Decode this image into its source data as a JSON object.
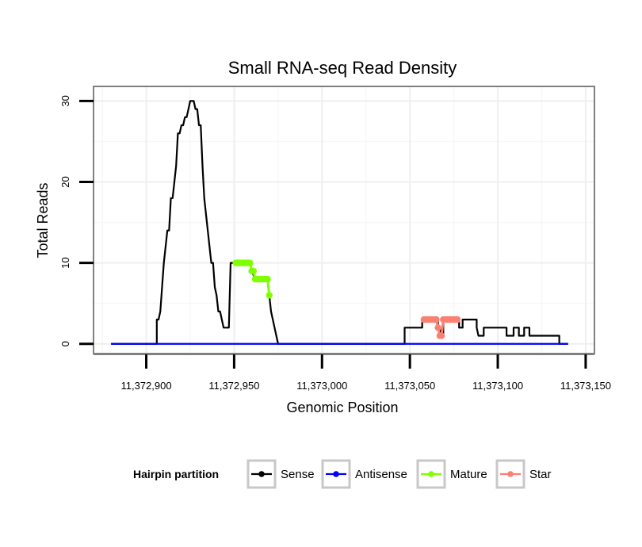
{
  "chart_data": {
    "type": "line",
    "title": "Small RNA-seq Read Density",
    "xlabel": "Genomic Position",
    "ylabel": "Total Reads",
    "xlim": [
      11372870,
      11373155
    ],
    "ylim": [
      -1.2,
      31.8
    ],
    "x_ticks": [
      11372900,
      11372950,
      11373000,
      11373050,
      11373100,
      11373150
    ],
    "x_tick_labels": [
      "11,372,900",
      "11,372,950",
      "11,373,000",
      "11,373,050",
      "11,373,100",
      "11,373,150"
    ],
    "y_ticks": [
      0,
      10,
      20,
      30
    ],
    "y_tick_labels": [
      "0",
      "10",
      "20",
      "30"
    ],
    "grid": true,
    "legend": {
      "title": "Hairpin partition",
      "position": "bottom",
      "entries": [
        "Sense",
        "Antisense",
        "Mature",
        "Star"
      ]
    },
    "series": [
      {
        "name": "Sense",
        "style": "line",
        "color": "#000000",
        "points": [
          [
            11372880,
            0
          ],
          [
            11372906,
            0
          ],
          [
            11372906,
            3
          ],
          [
            11372907,
            3
          ],
          [
            11372908,
            4
          ],
          [
            11372909,
            7
          ],
          [
            11372910,
            10
          ],
          [
            11372911,
            12
          ],
          [
            11372912,
            14
          ],
          [
            11372913,
            14
          ],
          [
            11372914,
            18
          ],
          [
            11372915,
            18
          ],
          [
            11372916,
            20
          ],
          [
            11372917,
            22
          ],
          [
            11372918,
            26
          ],
          [
            11372919,
            26
          ],
          [
            11372920,
            27
          ],
          [
            11372921,
            27
          ],
          [
            11372922,
            28
          ],
          [
            11372923,
            28
          ],
          [
            11372924,
            29
          ],
          [
            11372925,
            30
          ],
          [
            11372926,
            30
          ],
          [
            11372927,
            30
          ],
          [
            11372928,
            29
          ],
          [
            11372929,
            29
          ],
          [
            11372930,
            27
          ],
          [
            11372931,
            27
          ],
          [
            11372932,
            22
          ],
          [
            11372933,
            18
          ],
          [
            11372934,
            16
          ],
          [
            11372935,
            14
          ],
          [
            11372936,
            12
          ],
          [
            11372937,
            10
          ],
          [
            11372938,
            10
          ],
          [
            11372939,
            7
          ],
          [
            11372940,
            6
          ],
          [
            11372941,
            4
          ],
          [
            11372942,
            4
          ],
          [
            11372943,
            3
          ],
          [
            11372944,
            2
          ],
          [
            11372947,
            2
          ],
          [
            11372948,
            10
          ],
          [
            11372959,
            10
          ],
          [
            11372960,
            9
          ],
          [
            11372962,
            8
          ],
          [
            11372969,
            8
          ],
          [
            11372970,
            6
          ],
          [
            11372971,
            4
          ],
          [
            11372972,
            3
          ],
          [
            11372973,
            2
          ],
          [
            11372974,
            1
          ],
          [
            11372975,
            0
          ],
          [
            11373047,
            0
          ],
          [
            11373047,
            2
          ],
          [
            11373057,
            2
          ],
          [
            11373057,
            3
          ],
          [
            11373066,
            3
          ],
          [
            11373066,
            2
          ],
          [
            11373067,
            2
          ],
          [
            11373068,
            1
          ],
          [
            11373069,
            1
          ],
          [
            11373069,
            3
          ],
          [
            11373078,
            3
          ],
          [
            11373078,
            2
          ],
          [
            11373080,
            2
          ],
          [
            11373080,
            3
          ],
          [
            11373088,
            3
          ],
          [
            11373088,
            2
          ],
          [
            11373089,
            1
          ],
          [
            11373092,
            1
          ],
          [
            11373092,
            2
          ],
          [
            11373105,
            2
          ],
          [
            11373105,
            1
          ],
          [
            11373109,
            1
          ],
          [
            11373109,
            2
          ],
          [
            11373112,
            2
          ],
          [
            11373112,
            1
          ],
          [
            11373115,
            1
          ],
          [
            11373115,
            2
          ],
          [
            11373118,
            2
          ],
          [
            11373118,
            1
          ],
          [
            11373135,
            1
          ],
          [
            11373135,
            0
          ],
          [
            11373140,
            0
          ]
        ]
      },
      {
        "name": "Antisense",
        "style": "line",
        "color": "#0000ff",
        "points": [
          [
            11372880,
            0
          ],
          [
            11373140,
            0
          ]
        ]
      },
      {
        "name": "Mature",
        "style": "points",
        "color": "#7fff00",
        "points": [
          [
            11372951,
            10
          ],
          [
            11372952,
            10
          ],
          [
            11372953,
            10
          ],
          [
            11372954,
            10
          ],
          [
            11372955,
            10
          ],
          [
            11372956,
            10
          ],
          [
            11372957,
            10
          ],
          [
            11372958,
            10
          ],
          [
            11372959,
            10
          ],
          [
            11372960,
            9
          ],
          [
            11372961,
            9
          ],
          [
            11372962,
            8
          ],
          [
            11372963,
            8
          ],
          [
            11372964,
            8
          ],
          [
            11372965,
            8
          ],
          [
            11372966,
            8
          ],
          [
            11372967,
            8
          ],
          [
            11372968,
            8
          ],
          [
            11372969,
            8
          ],
          [
            11372970,
            6
          ]
        ]
      },
      {
        "name": "Star",
        "style": "points",
        "color": "#fa8072",
        "points": [
          [
            11373058,
            3
          ],
          [
            11373059,
            3
          ],
          [
            11373060,
            3
          ],
          [
            11373061,
            3
          ],
          [
            11373062,
            3
          ],
          [
            11373063,
            3
          ],
          [
            11373064,
            3
          ],
          [
            11373065,
            3
          ],
          [
            11373066,
            2
          ],
          [
            11373067,
            1
          ],
          [
            11373068,
            1
          ],
          [
            11373069,
            3
          ],
          [
            11373070,
            3
          ],
          [
            11373071,
            3
          ],
          [
            11373072,
            3
          ],
          [
            11373073,
            3
          ],
          [
            11373074,
            3
          ],
          [
            11373075,
            3
          ],
          [
            11373076,
            3
          ],
          [
            11373077,
            3
          ]
        ]
      }
    ]
  }
}
